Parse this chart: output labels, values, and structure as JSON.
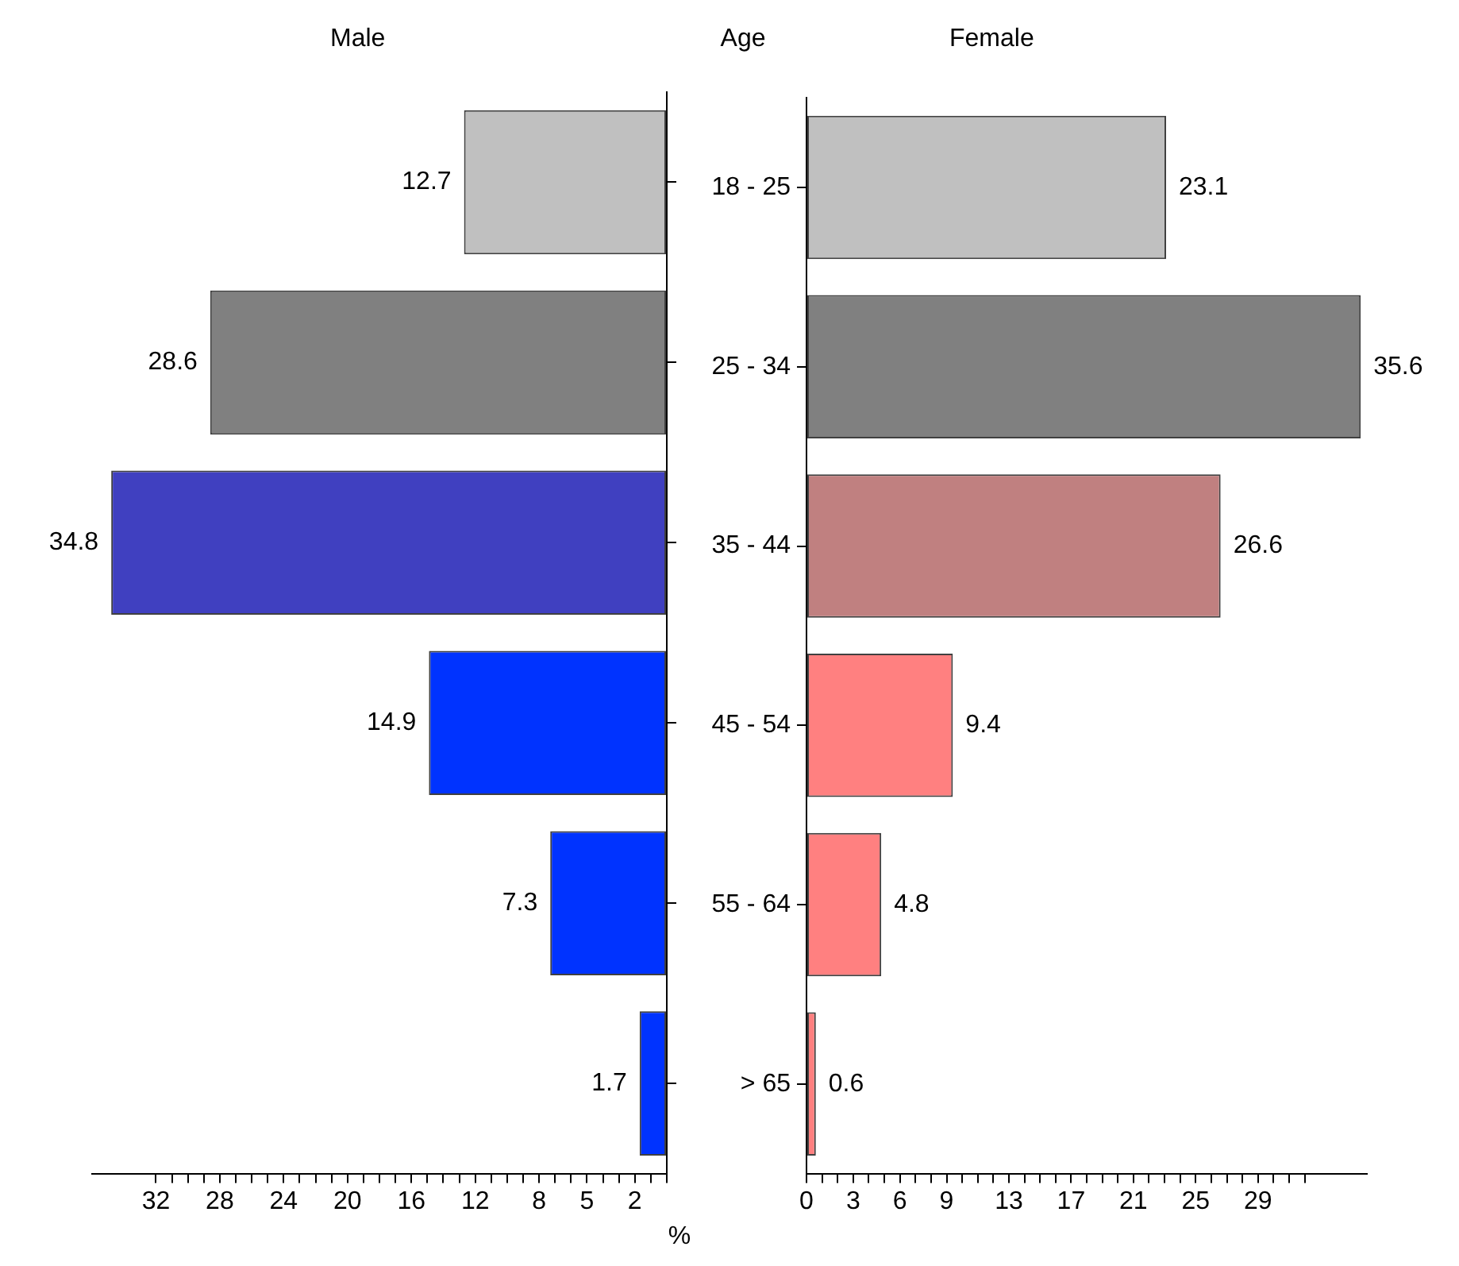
{
  "chart_data": [
    {
      "type": "bar",
      "orientation": "horizontal",
      "title": "Male",
      "categories": [
        null,
        null,
        null,
        null,
        null,
        null
      ],
      "values": [
        12.7,
        28.6,
        34.8,
        14.9,
        7.3,
        1.7
      ],
      "colors": [
        "#c0c0c0",
        "#808080",
        "#4040c0",
        "#0033ff",
        "#0033ff",
        "#0033ff"
      ],
      "data_labels": true,
      "tick_labels": "x",
      "xlim": [
        36,
        0
      ],
      "xticks": [
        {
          "value": 0,
          "label": null
        },
        {
          "value": 1,
          "label": null
        },
        2,
        {
          "value": 3,
          "label": null
        },
        {
          "value": 4,
          "label": null
        },
        5,
        {
          "value": 6,
          "label": null
        },
        {
          "value": 7,
          "label": null
        },
        8,
        {
          "value": 9,
          "label": null
        },
        {
          "value": 10,
          "label": null
        },
        {
          "value": 11,
          "label": null
        },
        12,
        {
          "value": 13,
          "label": null
        },
        {
          "value": 14,
          "label": null
        },
        {
          "value": 15,
          "label": null
        },
        16,
        {
          "value": 17,
          "label": null
        },
        {
          "value": 18,
          "label": null
        },
        {
          "value": 19,
          "label": null
        },
        20,
        {
          "value": 21,
          "label": null
        },
        {
          "value": 22,
          "label": null
        },
        {
          "value": 23,
          "label": null
        },
        24,
        {
          "value": 25,
          "label": null
        },
        {
          "value": 26,
          "label": null
        },
        {
          "value": 27,
          "label": null
        },
        28,
        {
          "value": 29,
          "label": null
        },
        {
          "value": 30,
          "label": null
        },
        {
          "value": 31,
          "label": null
        },
        32
      ]
    },
    {
      "type": "bar",
      "orientation": "horizontal",
      "title": "Female",
      "ylabel": "Age",
      "xlabel": "%",
      "categories": [
        "18 - 25",
        "25 - 34",
        "35 - 44",
        "45 - 54",
        "55 - 64",
        "> 65"
      ],
      "values": [
        23.1,
        35.6,
        26.6,
        9.4,
        4.8,
        0.6
      ],
      "colors": [
        "#c0c0c0",
        "#808080",
        "#c08080",
        "#ff8080",
        "#ff8080",
        "#ff8080"
      ],
      "data_labels": true,
      "xlim": [
        0,
        36
      ],
      "xticks": [
        0,
        {
          "value": 1,
          "label": null
        },
        {
          "value": 2,
          "label": null
        },
        3,
        {
          "value": 4,
          "label": null
        },
        {
          "value": 5,
          "label": null
        },
        6,
        {
          "value": 7,
          "label": null
        },
        {
          "value": 8,
          "label": null
        },
        9,
        {
          "value": 10,
          "label": null
        },
        {
          "value": 11,
          "label": null
        },
        {
          "value": 12,
          "label": null
        },
        13,
        {
          "value": 14,
          "label": null
        },
        {
          "value": 15,
          "label": null
        },
        {
          "value": 16,
          "label": null
        },
        17,
        {
          "value": 18,
          "label": null
        },
        {
          "value": 19,
          "label": null
        },
        {
          "value": 20,
          "label": null
        },
        21,
        {
          "value": 22,
          "label": null
        },
        {
          "value": 23,
          "label": null
        },
        {
          "value": 24,
          "label": null
        },
        25,
        {
          "value": 26,
          "label": null
        },
        {
          "value": 27,
          "label": null
        },
        {
          "value": 28,
          "label": null
        },
        29,
        {
          "value": 30,
          "label": null
        },
        {
          "value": 31,
          "label": null
        },
        {
          "value": 32,
          "label": null
        }
      ]
    }
  ]
}
